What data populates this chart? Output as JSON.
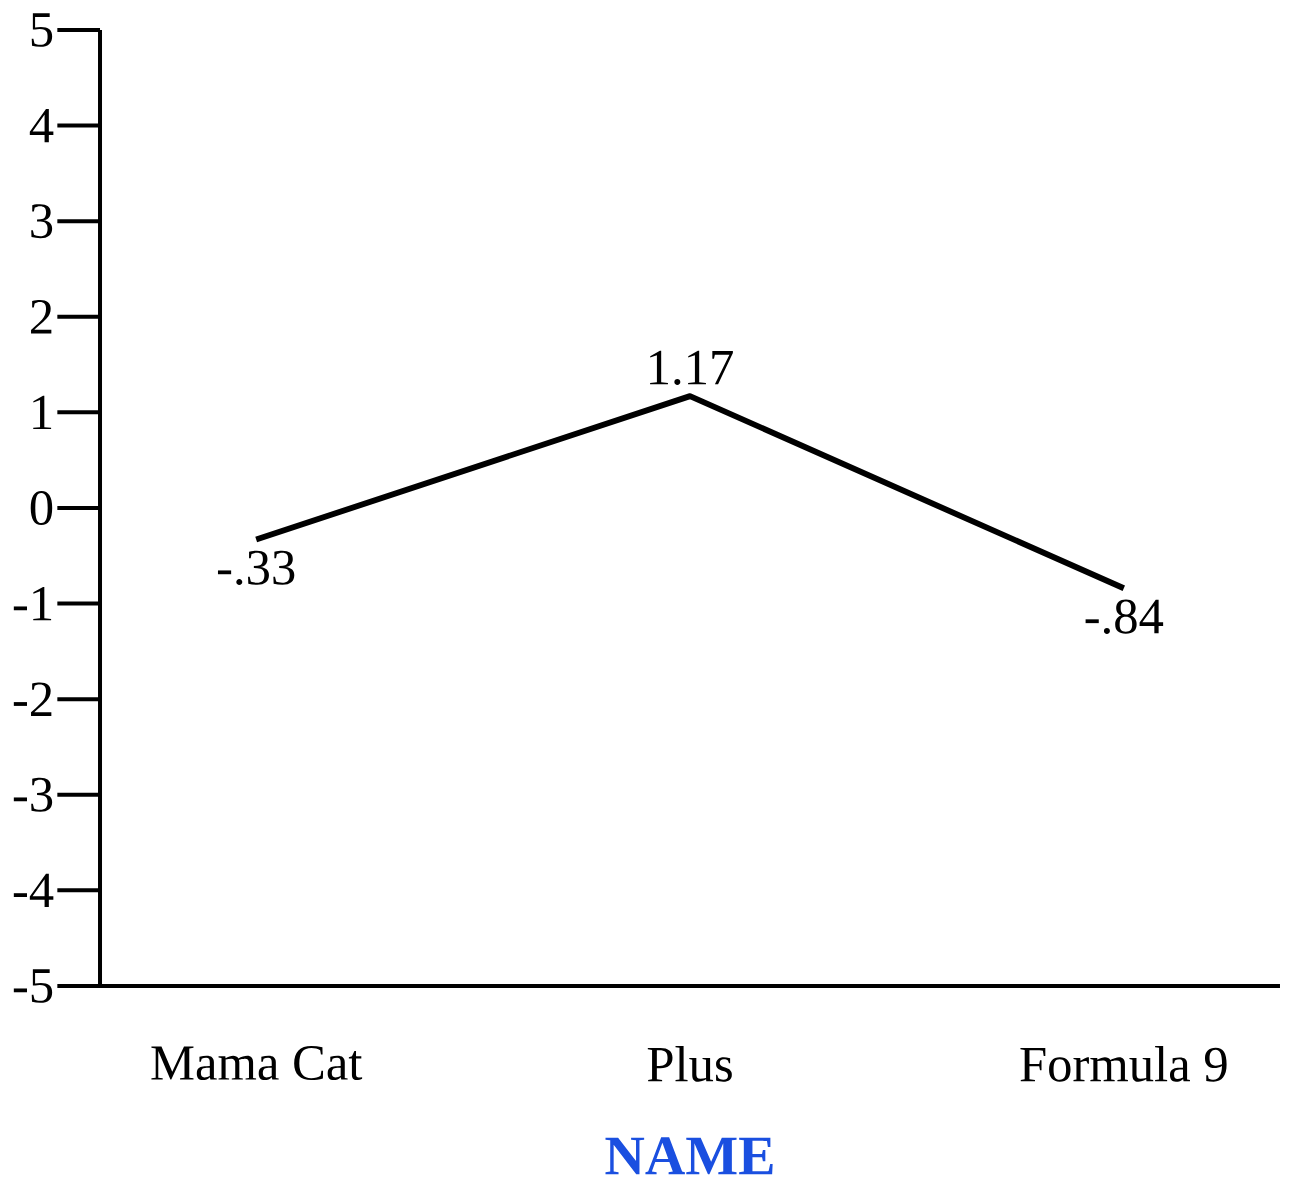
{
  "chart_data": {
    "type": "line",
    "xlabel": "NAME",
    "categories": [
      "Mama Cat",
      "Plus",
      "Formula 9"
    ],
    "series": [
      {
        "color": "#000000",
        "values": [
          -0.33,
          1.17,
          -0.84
        ],
        "value_labels": [
          "-.33",
          "1.17",
          "-.84"
        ]
      }
    ],
    "ylim": [
      -5,
      5
    ],
    "yticks": [
      -5,
      -4,
      -3,
      -2,
      -1,
      0,
      1,
      2,
      3,
      4,
      5
    ],
    "grid": false,
    "marker": "none",
    "line_style": "solid"
  }
}
